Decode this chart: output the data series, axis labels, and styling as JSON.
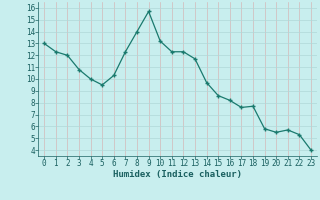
{
  "x": [
    0,
    1,
    2,
    3,
    4,
    5,
    6,
    7,
    8,
    9,
    10,
    11,
    12,
    13,
    14,
    15,
    16,
    17,
    18,
    19,
    20,
    21,
    22,
    23
  ],
  "y": [
    13.0,
    12.3,
    12.0,
    10.8,
    10.0,
    9.5,
    10.3,
    12.3,
    14.0,
    15.7,
    13.2,
    12.3,
    12.3,
    11.7,
    9.7,
    8.6,
    8.2,
    7.6,
    7.7,
    5.8,
    5.5,
    5.7,
    5.3,
    4.0
  ],
  "line_color": "#1a7a6e",
  "marker_color": "#1a7a6e",
  "bg_color": "#c8eeee",
  "grid_color": "#b0d8d8",
  "grid_color2": "#d4b8b8",
  "xlabel": "Humidex (Indice chaleur)",
  "xlim": [
    -0.5,
    23.5
  ],
  "ylim": [
    3.5,
    16.5
  ],
  "xticks": [
    0,
    1,
    2,
    3,
    4,
    5,
    6,
    7,
    8,
    9,
    10,
    11,
    12,
    13,
    14,
    15,
    16,
    17,
    18,
    19,
    20,
    21,
    22,
    23
  ],
  "yticks": [
    4,
    5,
    6,
    7,
    8,
    9,
    10,
    11,
    12,
    13,
    14,
    15,
    16
  ],
  "tick_fontsize": 5.5,
  "xlabel_fontsize": 6.5,
  "label_color": "#1a6060"
}
